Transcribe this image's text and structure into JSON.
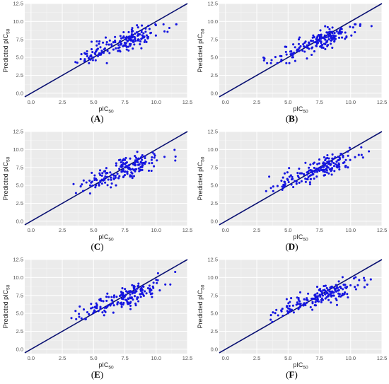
{
  "figure": {
    "panel_layout": "3 rows x 2 columns"
  },
  "chart_data": [
    {
      "type": "scatter",
      "panel_label": "A",
      "xlabel": "pIC",
      "xlabel_sub": "50",
      "ylabel": "Predicted pIC",
      "ylabel_sub": "50",
      "xlim": [
        -0.5,
        12.5
      ],
      "ylim": [
        -0.6,
        12.5
      ],
      "xticks": [
        "0.0",
        "2.5",
        "5.0",
        "7.5",
        "10.0",
        "12.5"
      ],
      "yticks": [
        "0.0",
        "2.5",
        "5.0",
        "7.5",
        "10.0",
        "12.5"
      ],
      "reference_line": "y = x",
      "point_color": "#1515e0",
      "line_color": "#0a1172",
      "background": "#ebebeb",
      "grid": true,
      "seed": 11,
      "spread": 0.7,
      "n_points": 180,
      "x_range": [
        2.8,
        11.7
      ],
      "y_range": [
        4.2,
        9.6
      ]
    },
    {
      "type": "scatter",
      "panel_label": "B",
      "xlabel": "pIC",
      "xlabel_sub": "50",
      "ylabel": "Predicted pIC",
      "ylabel_sub": "50",
      "xlim": [
        -0.5,
        12.5
      ],
      "ylim": [
        -0.6,
        12.5
      ],
      "xticks": [
        "0.0",
        "2.5",
        "5.0",
        "7.5",
        "10.0",
        "12.5"
      ],
      "yticks": [
        "0.0",
        "2.5",
        "5.0",
        "7.5",
        "10.0",
        "12.5"
      ],
      "reference_line": "y = x",
      "point_color": "#1515e0",
      "line_color": "#0a1172",
      "background": "#ebebeb",
      "grid": true,
      "seed": 23,
      "spread": 0.6,
      "n_points": 180,
      "x_range": [
        2.8,
        11.7
      ],
      "y_range": [
        4.2,
        9.6
      ]
    },
    {
      "type": "scatter",
      "panel_label": "C",
      "xlabel": "pIC",
      "xlabel_sub": "50",
      "ylabel": "Predicted pIC",
      "ylabel_sub": "50",
      "xlim": [
        -0.5,
        12.5
      ],
      "ylim": [
        -0.6,
        12.5
      ],
      "xticks": [
        "0.0",
        "2.5",
        "5.0",
        "7.5",
        "10.0",
        "12.5"
      ],
      "yticks": [
        "0.0",
        "2.5",
        "5.0",
        "7.5",
        "10.0",
        "12.5"
      ],
      "reference_line": "y = x",
      "point_color": "#1515e0",
      "line_color": "#0a1172",
      "background": "#ebebeb",
      "grid": true,
      "seed": 37,
      "spread": 0.75,
      "n_points": 180,
      "x_range": [
        2.8,
        11.7
      ],
      "y_range": [
        3.6,
        10.4
      ]
    },
    {
      "type": "scatter",
      "panel_label": "D",
      "xlabel": "pIC",
      "xlabel_sub": "50",
      "ylabel": "Predicted pIC",
      "ylabel_sub": "50",
      "xlim": [
        -0.5,
        12.5
      ],
      "ylim": [
        -0.6,
        12.5
      ],
      "xticks": [
        "0.0",
        "2.5",
        "5.0",
        "7.5",
        "10.0",
        "12.5"
      ],
      "yticks": [
        "0.0",
        "2.5",
        "5.0",
        "7.5",
        "10.0",
        "12.5"
      ],
      "reference_line": "y = x",
      "point_color": "#1515e0",
      "line_color": "#0a1172",
      "background": "#ebebeb",
      "grid": true,
      "seed": 41,
      "spread": 0.7,
      "n_points": 180,
      "x_range": [
        2.8,
        11.7
      ],
      "y_range": [
        4.2,
        10.3
      ]
    },
    {
      "type": "scatter",
      "panel_label": "E",
      "xlabel": "pIC",
      "xlabel_sub": "50",
      "ylabel": "Predicted pIC",
      "ylabel_sub": "50",
      "xlim": [
        -0.5,
        12.5
      ],
      "ylim": [
        -0.6,
        12.5
      ],
      "xticks": [
        "0.0",
        "2.5",
        "5.0",
        "7.5",
        "10.0",
        "12.5"
      ],
      "yticks": [
        "0.0",
        "2.5",
        "5.0",
        "7.5",
        "10.0",
        "12.5"
      ],
      "reference_line": "y = x",
      "point_color": "#1515e0",
      "line_color": "#0a1172",
      "background": "#ebebeb",
      "grid": true,
      "seed": 53,
      "spread": 0.75,
      "n_points": 180,
      "x_range": [
        2.8,
        11.7
      ],
      "y_range": [
        4.2,
        11.1
      ]
    },
    {
      "type": "scatter",
      "panel_label": "F",
      "xlabel": "pIC",
      "xlabel_sub": "50",
      "ylabel": "Predicted pIC",
      "ylabel_sub": "50",
      "xlim": [
        -0.5,
        12.5
      ],
      "ylim": [
        -0.6,
        12.5
      ],
      "xticks": [
        "0.0",
        "2.5",
        "5.0",
        "7.5",
        "10.0",
        "12.5"
      ],
      "yticks": [
        "0.0",
        "2.5",
        "5.0",
        "7.5",
        "10.0",
        "12.5"
      ],
      "reference_line": "y = x",
      "point_color": "#1515e0",
      "line_color": "#0a1172",
      "background": "#ebebeb",
      "grid": true,
      "seed": 67,
      "spread": 0.6,
      "n_points": 180,
      "x_range": [
        2.8,
        11.7
      ],
      "y_range": [
        3.8,
        10.8
      ]
    }
  ]
}
